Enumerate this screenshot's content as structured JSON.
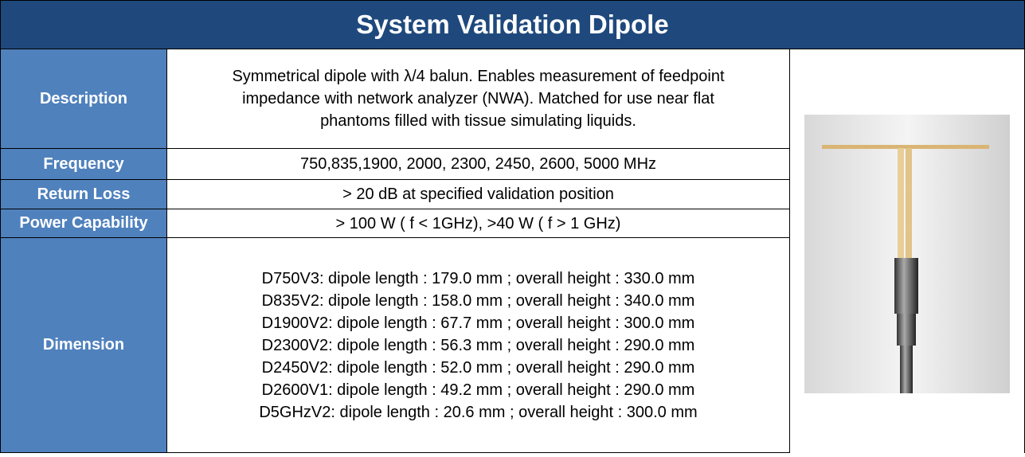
{
  "title": "System Validation Dipole",
  "rows": [
    {
      "label": "Description",
      "lines": [
        "Symmetrical dipole with  λ/4 balun. Enables measurement of feedpoint",
        "impedance with network analyzer (NWA). Matched for use near flat",
        "phantoms filled with tissue simulating liquids."
      ]
    },
    {
      "label": "Frequency",
      "lines": [
        "750,835,1900, 2000, 2300, 2450, 2600, 5000 MHz"
      ]
    },
    {
      "label": "Return Loss",
      "lines": [
        "> 20 dB at specified validation position"
      ]
    },
    {
      "label": "Power Capability",
      "lines": [
        "> 100 W ( f < 1GHz), >40 W ( f > 1 GHz)"
      ]
    },
    {
      "label": "Dimension",
      "lines": [
        "D750V3: dipole length : 179.0 mm ; overall height : 330.0 mm",
        "D835V2: dipole length : 158.0 mm ; overall height : 340.0 mm",
        "D1900V2: dipole length : 67.7 mm ; overall height : 300.0 mm",
        "D2300V2: dipole length : 56.3 mm ; overall height : 290.0 mm",
        "D2450V2: dipole length : 52.0 mm ; overall height : 290.0 mm",
        "D2600V1: dipole length : 49.2 mm ; overall height : 290.0 mm",
        "D5GHzV2: dipole length : 20.6 mm ; overall height : 300.0 mm"
      ]
    }
  ]
}
